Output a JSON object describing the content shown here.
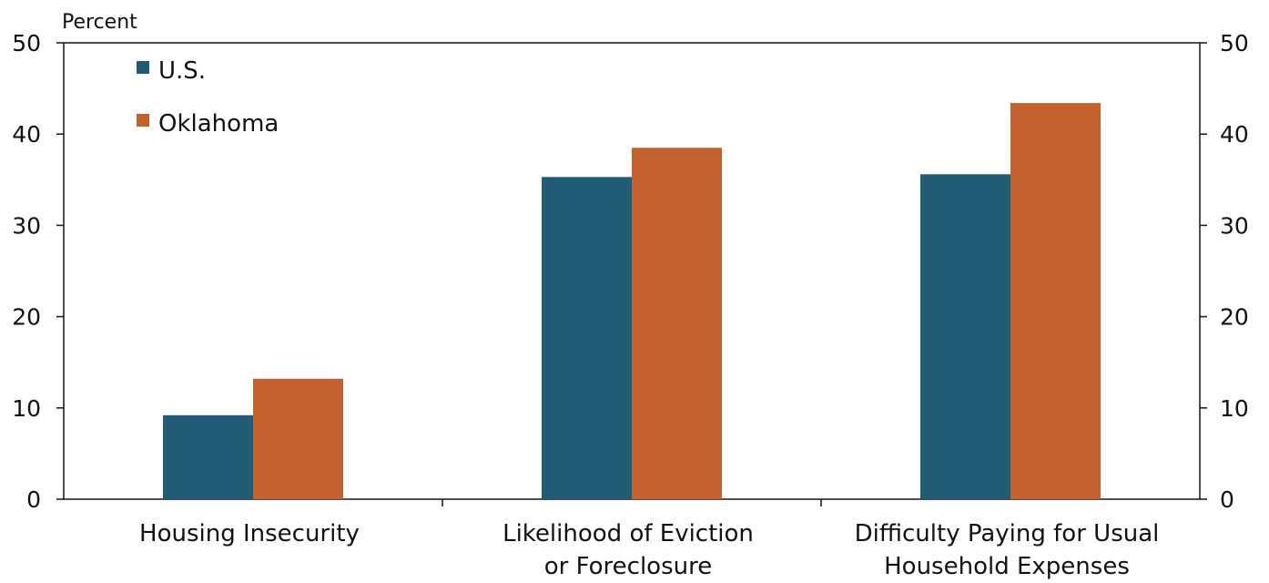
{
  "chart_data": {
    "type": "bar",
    "unit_label": "Percent",
    "categories": [
      [
        "Housing Insecurity"
      ],
      [
        "Likelihood of Eviction",
        "or Foreclosure"
      ],
      [
        "Difficulty Paying for Usual",
        "Household Expenses"
      ]
    ],
    "series": [
      {
        "name": "U.S.",
        "color": "#215a75",
        "values": [
          9.2,
          35.3,
          35.6
        ]
      },
      {
        "name": "Oklahoma",
        "color": "#c4622d",
        "values": [
          13.2,
          38.5,
          43.4
        ]
      }
    ],
    "ylim": [
      0,
      50
    ],
    "yticks": [
      0,
      10,
      20,
      30,
      40,
      50
    ],
    "dual_y_axis": true,
    "legend_position": "top-left",
    "grid": false
  }
}
